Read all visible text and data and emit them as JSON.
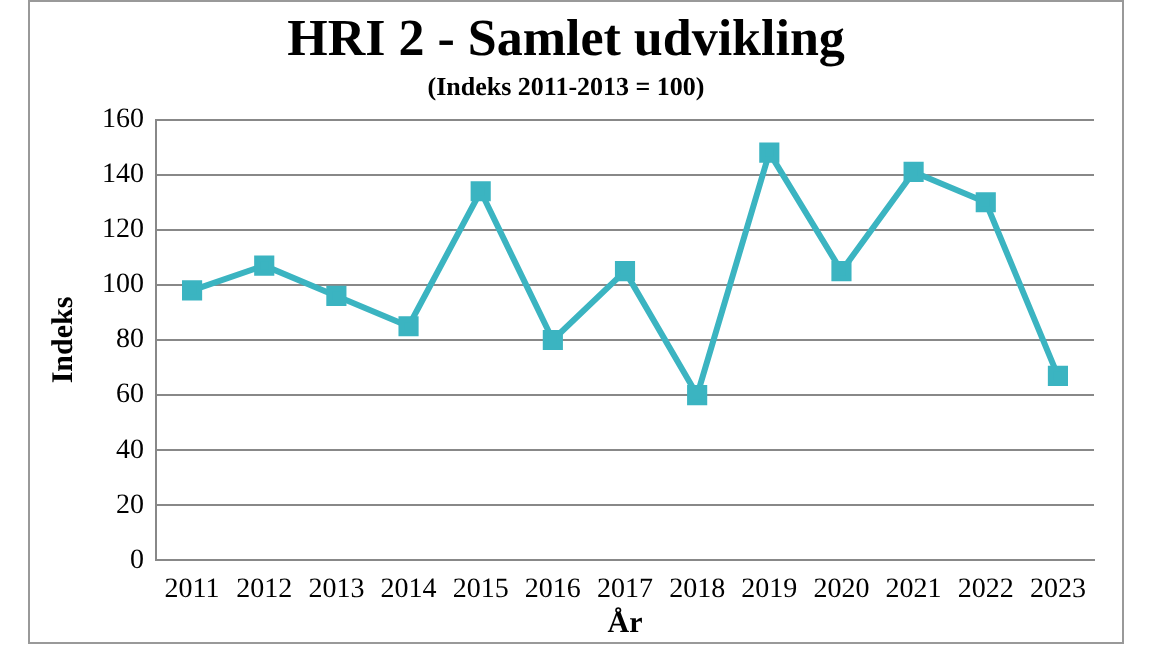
{
  "chart_data": {
    "type": "line",
    "title": "HRI 2 - Samlet udvikling",
    "subtitle": "(Indeks 2011-2013 = 100)",
    "xlabel": "År",
    "ylabel": "Indeks",
    "categories": [
      "2011",
      "2012",
      "2013",
      "2014",
      "2015",
      "2016",
      "2017",
      "2018",
      "2019",
      "2020",
      "2021",
      "2022",
      "2023"
    ],
    "series": [
      {
        "color": "#3bb4c1",
        "values": [
          98,
          107,
          96,
          85,
          134,
          80,
          105,
          60,
          148,
          105,
          141,
          130,
          67
        ]
      }
    ],
    "ylim": [
      0,
      160
    ],
    "yticks": [
      0,
      20,
      40,
      60,
      80,
      100,
      120,
      140,
      160
    ],
    "grid": "y",
    "legend": false,
    "marker": "square",
    "line_style": "solid"
  }
}
